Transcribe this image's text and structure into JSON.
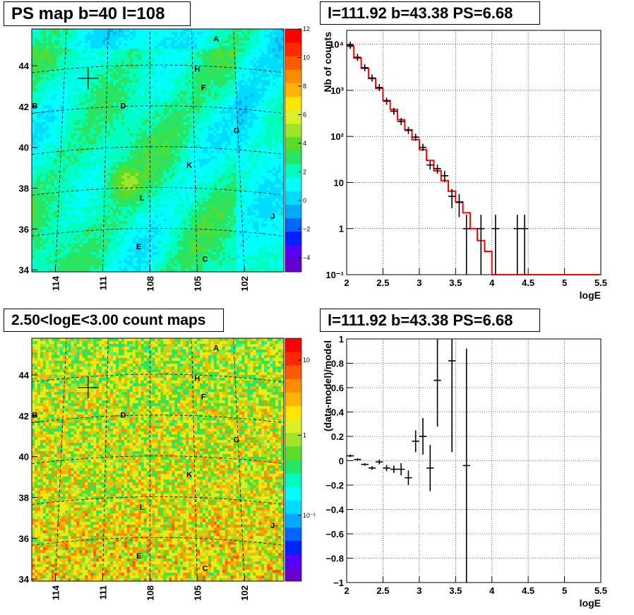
{
  "panels": {
    "tl_title": "PS map b=40 l=108",
    "tr_title": "l=111.92 b=43.38 PS=6.68",
    "bl_title": "2.50<logE<3.00 count maps",
    "br_title": "l=111.92 b=43.38 PS=6.68"
  },
  "sky_maps": {
    "x_ticks": [
      "114",
      "111",
      "108",
      "105",
      "102"
    ],
    "y_ticks": [
      "34",
      "36",
      "38",
      "40",
      "42",
      "44"
    ],
    "source_labels": [
      "A",
      "B",
      "C",
      "D",
      "E",
      "F",
      "G",
      "H",
      "J",
      "K",
      "L"
    ],
    "ps_colorbar_ticks": [
      "12",
      "10",
      "8",
      "6",
      "4",
      "2",
      "0",
      "−2",
      "−4"
    ],
    "count_colorbar_ticks": [
      "10",
      "1",
      "10⁻¹"
    ]
  },
  "chart_data": [
    {
      "type": "heatmap",
      "title": "PS map b=40 l=108",
      "xlabel": "",
      "ylabel": "",
      "xlim": [
        115.5,
        99.5
      ],
      "ylim": [
        33.9,
        45.8
      ],
      "z_range": [
        -5,
        12
      ],
      "grid": true
    },
    {
      "type": "line",
      "title": "l=111.92 b=43.38 PS=6.68",
      "xlabel": "logE",
      "ylabel": "Nb of counts",
      "xlim": [
        2,
        5.5
      ],
      "ylim": [
        0.1,
        20000
      ],
      "yscale": "log",
      "x_ticks": [
        "2",
        "2.5",
        "3",
        "3.5",
        "4",
        "4.5",
        "5",
        "5.5"
      ],
      "y_ticks": [
        "10⁻¹",
        "1",
        "10",
        "10²",
        "10³",
        "10⁴"
      ],
      "grid": true,
      "series": [
        {
          "kind": "step",
          "color": "#ff0000",
          "bin_edges": [
            2.0,
            2.1,
            2.2,
            2.3,
            2.4,
            2.5,
            2.6,
            2.7,
            2.8,
            2.9,
            3.0,
            3.1,
            3.2,
            3.3,
            3.4,
            3.5,
            3.6,
            3.7,
            3.8,
            3.9,
            4.0,
            4.1,
            4.2,
            4.3,
            4.4,
            4.5,
            4.6,
            4.7,
            4.8,
            4.9,
            5.0,
            5.1,
            5.2,
            5.3,
            5.4,
            5.5
          ],
          "values": [
            9000,
            5000,
            3000,
            1800,
            1100,
            600,
            380,
            230,
            140,
            85,
            52,
            30,
            18,
            11,
            6.5,
            3.8,
            2.2,
            1.0,
            0.55,
            0.32,
            0.1,
            0.1,
            0.1,
            0.1,
            0.1,
            0.1,
            0.1,
            0.1,
            0.1,
            0.1,
            0.1,
            0.1,
            0.1,
            0.1,
            0.1
          ]
        },
        {
          "kind": "points",
          "color": "#000000",
          "x": [
            2.05,
            2.15,
            2.25,
            2.35,
            2.45,
            2.55,
            2.65,
            2.75,
            2.85,
            2.95,
            3.05,
            3.15,
            3.25,
            3.35,
            3.45,
            3.55,
            3.65,
            3.85,
            4.05,
            4.35,
            4.45
          ],
          "y": [
            9500,
            5200,
            3100,
            1850,
            1150,
            580,
            350,
            210,
            135,
            96,
            58,
            24,
            20,
            14,
            5,
            3.7,
            1,
            1,
            1,
            1,
            1
          ]
        }
      ]
    },
    {
      "type": "heatmap",
      "title": "2.50<logE<3.00 count maps",
      "xlabel": "",
      "ylabel": "",
      "xlim": [
        115.5,
        99.5
      ],
      "ylim": [
        33.9,
        45.8
      ],
      "z_scale": "log",
      "z_range": [
        0.02,
        20
      ],
      "grid": true
    },
    {
      "type": "scatter",
      "title": "l=111.92 b=43.38 PS=6.68",
      "xlabel": "logE",
      "ylabel": "(data-model)/model",
      "xlim": [
        2,
        5.5
      ],
      "ylim": [
        -1,
        1
      ],
      "x_ticks": [
        "2",
        "2.5",
        "3",
        "3.5",
        "4",
        "4.5",
        "5",
        "5.5"
      ],
      "y_ticks": [
        "−1",
        "−0.8",
        "−0.6",
        "−0.4",
        "−0.2",
        "0",
        "0.2",
        "0.4",
        "0.6",
        "0.8",
        "1"
      ],
      "grid": true,
      "series": [
        {
          "kind": "points",
          "color": "#000000",
          "x": [
            2.05,
            2.15,
            2.25,
            2.35,
            2.45,
            2.55,
            2.65,
            2.75,
            2.85,
            2.95,
            3.05,
            3.15,
            3.25,
            3.45,
            3.65
          ],
          "y": [
            0.04,
            0.01,
            -0.03,
            -0.06,
            -0.01,
            -0.06,
            -0.07,
            -0.07,
            -0.14,
            0.16,
            0.2,
            -0.06,
            0.66,
            0.82,
            -0.04
          ],
          "err": [
            0.01,
            0.01,
            0.01,
            0.015,
            0.02,
            0.025,
            0.03,
            0.05,
            0.06,
            0.09,
            0.15,
            0.19,
            0.38,
            0.75,
            0.96
          ]
        }
      ]
    }
  ]
}
